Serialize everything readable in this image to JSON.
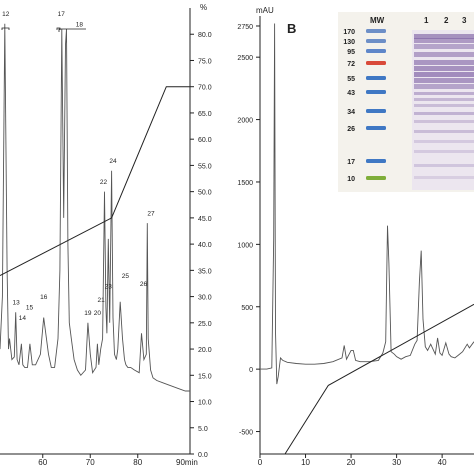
{
  "chart_data": [
    {
      "type": "line",
      "title": "",
      "xlabel": "",
      "x_unit_label": "90min",
      "x_ticks": [
        60,
        70,
        80
      ],
      "xlim": [
        51,
        91
      ],
      "ylabel_right": "%",
      "ylim": [
        0,
        85
      ],
      "y_ticks": [
        "0.0",
        "5.0",
        "10.0",
        "15.0",
        "20.0",
        "25.0",
        "30.0",
        "35.0",
        "40.0",
        "45.0",
        "50.0",
        "55.0",
        "60.0",
        "65.0",
        "70.0",
        "75.0",
        "80.0"
      ],
      "grid": false,
      "series": [
        {
          "role": "chromatogram",
          "x": [
            51.0,
            51.5,
            52.0,
            52.5,
            52.8,
            53.0,
            53.5,
            54.0,
            54.3,
            54.6,
            55.0,
            55.5,
            55.8,
            56.2,
            56.8,
            57.3,
            57.8,
            58.5,
            59.5,
            60.2,
            61.2,
            61.8,
            62.5,
            63.2,
            63.6,
            64.0,
            64.4,
            64.8,
            65.0,
            65.3,
            65.6,
            66.0,
            66.6,
            67.3,
            68.0,
            69.0,
            69.5,
            70.0,
            70.5,
            71.2,
            71.5,
            71.8,
            72.2,
            72.6,
            73.0,
            73.3,
            73.5,
            73.8,
            74.1,
            74.5,
            74.8,
            75.1,
            75.5,
            75.8,
            76.3,
            76.8,
            77.2,
            77.5,
            77.9,
            78.5,
            79.3,
            80.3,
            80.8,
            81.3,
            81.8,
            82.0,
            82.2,
            82.7,
            83.2,
            84.0,
            85.5,
            87.0,
            88.5,
            90.0,
            91.0
          ],
          "y": [
            20.0,
            30.0,
            82.0,
            35.0,
            20.0,
            22.0,
            18.0,
            18.5,
            27.0,
            18.0,
            17.0,
            21.0,
            17.0,
            16.5,
            16.5,
            21.0,
            17.0,
            17.0,
            19.0,
            26.0,
            19.0,
            16.5,
            16.5,
            22.0,
            35.0,
            81.0,
            45.0,
            78.0,
            81.0,
            40.0,
            25.0,
            22.0,
            18.0,
            16.0,
            15.0,
            16.0,
            25.0,
            19.0,
            15.5,
            16.5,
            21.0,
            17.0,
            20.0,
            22.0,
            50.0,
            28.0,
            23.0,
            41.0,
            25.0,
            54.0,
            26.0,
            19.0,
            18.0,
            20.0,
            29.0,
            22.0,
            18.0,
            17.0,
            16.5,
            16.5,
            16.0,
            15.5,
            23.0,
            18.0,
            19.0,
            44.0,
            22.0,
            16.0,
            14.5,
            14.0,
            13.5,
            13.0,
            12.5,
            12.0,
            12.0
          ]
        },
        {
          "role": "gradient (%)",
          "x": [
            51.0,
            74.5,
            86.0,
            91.0
          ],
          "y": [
            34.0,
            45.0,
            70.0,
            70.0
          ]
        }
      ],
      "peak_labels": [
        {
          "label": "12",
          "x": 52.2,
          "y": 83.5
        },
        {
          "label": "13",
          "x": 54.4,
          "y": 28.5
        },
        {
          "label": "14",
          "x": 55.7,
          "y": 25.5
        },
        {
          "label": "15",
          "x": 57.2,
          "y": 27.5
        },
        {
          "label": "16",
          "x": 60.2,
          "y": 29.5
        },
        {
          "label": "17",
          "x": 63.9,
          "y": 83.5
        },
        {
          "label": "18",
          "x": 67.7,
          "y": 81.5
        },
        {
          "label": "19",
          "x": 69.5,
          "y": 26.5
        },
        {
          "label": "20",
          "x": 71.5,
          "y": 26.5
        },
        {
          "label": "21",
          "x": 72.3,
          "y": 29.0
        },
        {
          "label": "22",
          "x": 72.8,
          "y": 51.5
        },
        {
          "label": "23",
          "x": 73.8,
          "y": 31.5
        },
        {
          "label": "24",
          "x": 74.8,
          "y": 55.5
        },
        {
          "label": "25",
          "x": 77.4,
          "y": 33.5
        },
        {
          "label": "26",
          "x": 81.2,
          "y": 32.0
        },
        {
          "label": "27",
          "x": 82.8,
          "y": 45.5
        }
      ]
    },
    {
      "type": "line",
      "panel_label": "B",
      "title": "",
      "ylabel": "mAU",
      "xlabel": "",
      "xlim": [
        0,
        47
      ],
      "x_ticks": [
        0,
        10,
        20,
        30,
        40
      ],
      "ylim": [
        -680,
        2830
      ],
      "y_ticks": [
        -500,
        0,
        500,
        1000,
        1500,
        2000,
        2500,
        2750
      ],
      "grid": false,
      "series": [
        {
          "role": "chromatogram",
          "x": [
            0,
            1.5,
            2.6,
            3.0,
            3.2,
            3.4,
            3.7,
            4.0,
            4.5,
            5.0,
            6.0,
            8.0,
            10.0,
            12.0,
            14.0,
            16.0,
            18.0,
            18.5,
            19.0,
            20.0,
            20.5,
            21.0,
            22.0,
            24.0,
            26.0,
            27.0,
            27.6,
            28.0,
            28.3,
            28.8,
            29.5,
            30.0,
            31.0,
            32.0,
            33.0,
            34.0,
            34.5,
            35.0,
            35.4,
            35.8,
            36.3,
            36.8,
            37.5,
            38.5,
            39.0,
            39.5,
            40.0,
            40.8,
            41.5,
            42.0,
            42.8,
            43.5,
            44.5,
            45.5,
            46.0,
            47.0
          ],
          "y": [
            0,
            0,
            10,
            1050,
            2770,
            300,
            -120,
            -60,
            90,
            70,
            55,
            45,
            40,
            40,
            45,
            60,
            90,
            190,
            80,
            150,
            150,
            70,
            60,
            60,
            70,
            130,
            220,
            1150,
            850,
            140,
            120,
            100,
            80,
            100,
            110,
            200,
            230,
            700,
            950,
            400,
            180,
            150,
            200,
            120,
            250,
            130,
            110,
            210,
            120,
            100,
            90,
            110,
            140,
            200,
            170,
            220
          ]
        },
        {
          "role": "gradient",
          "x": [
            5.5,
            15.0,
            47.0
          ],
          "y": [
            -680,
            -130,
            520
          ]
        }
      ],
      "inset_gel": {
        "header_labels": [
          "MW",
          "1",
          "2",
          "3"
        ],
        "marker_labels": [
          "170",
          "130",
          "95",
          "72",
          "55",
          "43",
          "34",
          "26",
          "17",
          "10"
        ]
      }
    }
  ],
  "colors": {
    "trace": "#555555",
    "axis": "#222222",
    "marker_red": "#d94a3a",
    "marker_green": "#7fae3a",
    "marker_blue": "#3f78c4",
    "lane_purple": "#7d5fa3"
  }
}
